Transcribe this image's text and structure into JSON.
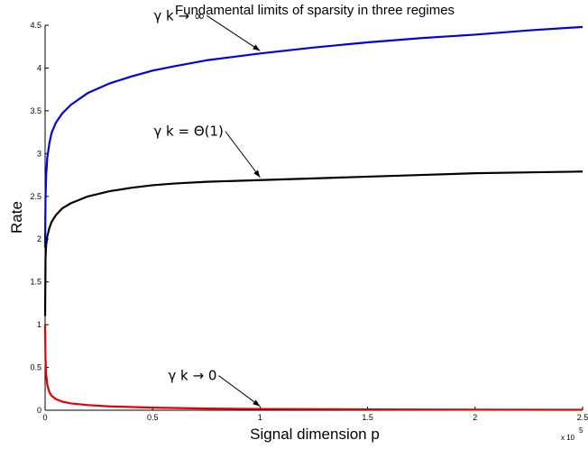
{
  "chart_data": {
    "type": "line",
    "title": "Fundamental limits of sparsity in three regimes",
    "xlabel": "Signal dimension p",
    "ylabel": "Rate",
    "xlim": [
      0,
      250000
    ],
    "ylim": [
      0,
      4.5
    ],
    "x_multiplier_label": "x 10",
    "x_multiplier_exponent": "5",
    "x_ticks": [
      0,
      50000,
      100000,
      150000,
      200000,
      250000
    ],
    "x_tick_labels": [
      "0",
      "0.5",
      "1",
      "1.5",
      "2",
      "2.5"
    ],
    "y_ticks": [
      0,
      0.5,
      1,
      1.5,
      2,
      2.5,
      3,
      3.5,
      4,
      4.5
    ],
    "y_tick_labels": [
      "0",
      "0.5",
      "1",
      "1.5",
      "2",
      "2.5",
      "3",
      "3.5",
      "4",
      "4.5"
    ],
    "grid": false,
    "series": [
      {
        "name": "γ k → ∞",
        "color": "#0000e0",
        "x": [
          10,
          200,
          500,
          1000,
          2000,
          3000,
          5000,
          8000,
          12000,
          20000,
          30000,
          40000,
          50000,
          60000,
          75000,
          100000,
          125000,
          150000,
          175000,
          200000,
          225000,
          250000
        ],
        "y": [
          1.9,
          2.48,
          2.75,
          2.95,
          3.12,
          3.24,
          3.36,
          3.47,
          3.57,
          3.71,
          3.82,
          3.9,
          3.97,
          4.02,
          4.09,
          4.17,
          4.24,
          4.3,
          4.35,
          4.39,
          4.44,
          4.48
        ]
      },
      {
        "name": "γ k = Θ(1)",
        "color": "#000000",
        "x": [
          10,
          200,
          500,
          1000,
          2000,
          3000,
          5000,
          8000,
          12000,
          20000,
          30000,
          40000,
          50000,
          60000,
          75000,
          100000,
          125000,
          150000,
          175000,
          200000,
          225000,
          250000
        ],
        "y": [
          1.1,
          1.78,
          1.93,
          2.03,
          2.13,
          2.2,
          2.28,
          2.36,
          2.42,
          2.5,
          2.56,
          2.6,
          2.63,
          2.65,
          2.67,
          2.69,
          2.71,
          2.73,
          2.75,
          2.77,
          2.78,
          2.79
        ]
      },
      {
        "name": "γ k → 0",
        "color": "#e00000",
        "x": [
          10,
          200,
          500,
          1000,
          2000,
          3000,
          5000,
          8000,
          12000,
          20000,
          30000,
          50000,
          75000,
          100000,
          150000,
          200000,
          250000
        ],
        "y": [
          1.0,
          0.6,
          0.42,
          0.3,
          0.21,
          0.17,
          0.13,
          0.1,
          0.08,
          0.06,
          0.045,
          0.03,
          0.02,
          0.015,
          0.01,
          0.007,
          0.005
        ]
      }
    ],
    "annotations": [
      {
        "text": "γ k → ∞",
        "series": 0,
        "x": 100000,
        "y": 4.17
      },
      {
        "text": "γ k = Θ(1)",
        "series": 1,
        "x": 100000,
        "y": 2.69
      },
      {
        "text": "γ k → 0",
        "series": 2,
        "x": 100000,
        "y": 0.015
      }
    ]
  }
}
